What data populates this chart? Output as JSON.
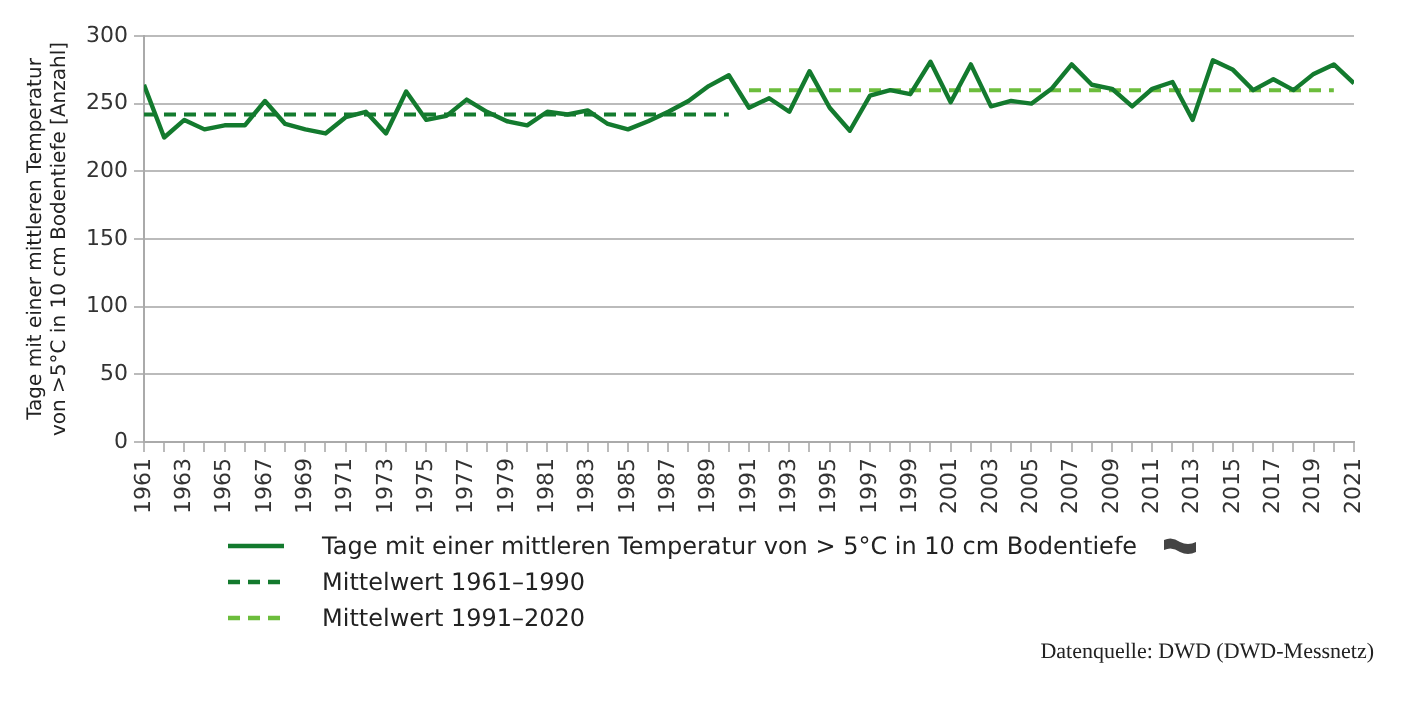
{
  "chart_data": {
    "type": "line",
    "ylabel": "Tage mit einer mittleren Temperatur\nvon >5°C in 10 cm Bodentiefe [Anzahl]",
    "x": [
      1961,
      1962,
      1963,
      1964,
      1965,
      1966,
      1967,
      1968,
      1969,
      1970,
      1971,
      1972,
      1973,
      1974,
      1975,
      1976,
      1977,
      1978,
      1979,
      1980,
      1981,
      1982,
      1983,
      1984,
      1985,
      1986,
      1987,
      1988,
      1989,
      1990,
      1991,
      1992,
      1993,
      1994,
      1995,
      1996,
      1997,
      1998,
      1999,
      2000,
      2001,
      2002,
      2003,
      2004,
      2005,
      2006,
      2007,
      2008,
      2009,
      2010,
      2011,
      2012,
      2013,
      2014,
      2015,
      2016,
      2017,
      2018,
      2019,
      2020,
      2021
    ],
    "series": [
      {
        "name": "Tage mit einer mittleren Temperatur von > 5°C in 10 cm Bodentiefe",
        "color": "#137a2e",
        "line_style": "solid",
        "values": [
          264,
          225,
          238,
          231,
          234,
          234,
          252,
          235,
          231,
          228,
          240,
          244,
          228,
          259,
          238,
          241,
          253,
          244,
          237,
          234,
          244,
          242,
          245,
          235,
          231,
          237,
          244,
          252,
          263,
          271,
          247,
          254,
          244,
          274,
          247,
          230,
          256,
          260,
          257,
          281,
          251,
          279,
          248,
          252,
          250,
          261,
          279,
          264,
          261,
          248,
          261,
          266,
          238,
          282,
          275,
          260,
          268,
          260,
          272,
          279,
          265
        ]
      },
      {
        "name": "Mittelwert 1961–1990",
        "color": "#137a2e",
        "line_style": "dashed",
        "x": [
          1961,
          1990
        ],
        "values": [
          242,
          242
        ]
      },
      {
        "name": "Mittelwert 1991–2020",
        "color": "#6cbd3c",
        "line_style": "dashed",
        "x": [
          1991,
          2020
        ],
        "values": [
          260,
          260
        ]
      }
    ],
    "xlim": [
      1961,
      2021
    ],
    "xticks": [
      1961,
      {
        "value": 1962,
        "label": null
      },
      1963,
      {
        "value": 1964,
        "label": null
      },
      1965,
      {
        "value": 1966,
        "label": null
      },
      1967,
      {
        "value": 1968,
        "label": null
      },
      1969,
      {
        "value": 1970,
        "label": null
      },
      1971,
      {
        "value": 1972,
        "label": null
      },
      1973,
      {
        "value": 1974,
        "label": null
      },
      1975,
      {
        "value": 1976,
        "label": null
      },
      1977,
      {
        "value": 1978,
        "label": null
      },
      1979,
      {
        "value": 1980,
        "label": null
      },
      1981,
      {
        "value": 1982,
        "label": null
      },
      1983,
      {
        "value": 1984,
        "label": null
      },
      1985,
      {
        "value": 1986,
        "label": null
      },
      1987,
      {
        "value": 1988,
        "label": null
      },
      1989,
      {
        "value": 1990,
        "label": null
      },
      1991,
      {
        "value": 1992,
        "label": null
      },
      1993,
      {
        "value": 1994,
        "label": null
      },
      1995,
      {
        "value": 1996,
        "label": null
      },
      1997,
      {
        "value": 1998,
        "label": null
      },
      1999,
      {
        "value": 2000,
        "label": null
      },
      2001,
      {
        "value": 2002,
        "label": null
      },
      2003,
      {
        "value": 2004,
        "label": null
      },
      2005,
      {
        "value": 2006,
        "label": null
      },
      2007,
      {
        "value": 2008,
        "label": null
      },
      2009,
      {
        "value": 2010,
        "label": null
      },
      2011,
      {
        "value": 2012,
        "label": null
      },
      2013,
      {
        "value": 2014,
        "label": null
      },
      2015,
      {
        "value": 2016,
        "label": null
      },
      2017,
      {
        "value": 2018,
        "label": null
      },
      2019,
      {
        "value": 2020,
        "label": null
      },
      2021
    ],
    "ylim": [
      0,
      300
    ],
    "yticks": [
      0,
      50,
      100,
      150,
      200,
      250,
      300
    ],
    "grid": "y",
    "legend": "bottom",
    "marker": "none",
    "annotations": [
      "Datenquelle: DWD (DWD-Messnetz)"
    ]
  }
}
